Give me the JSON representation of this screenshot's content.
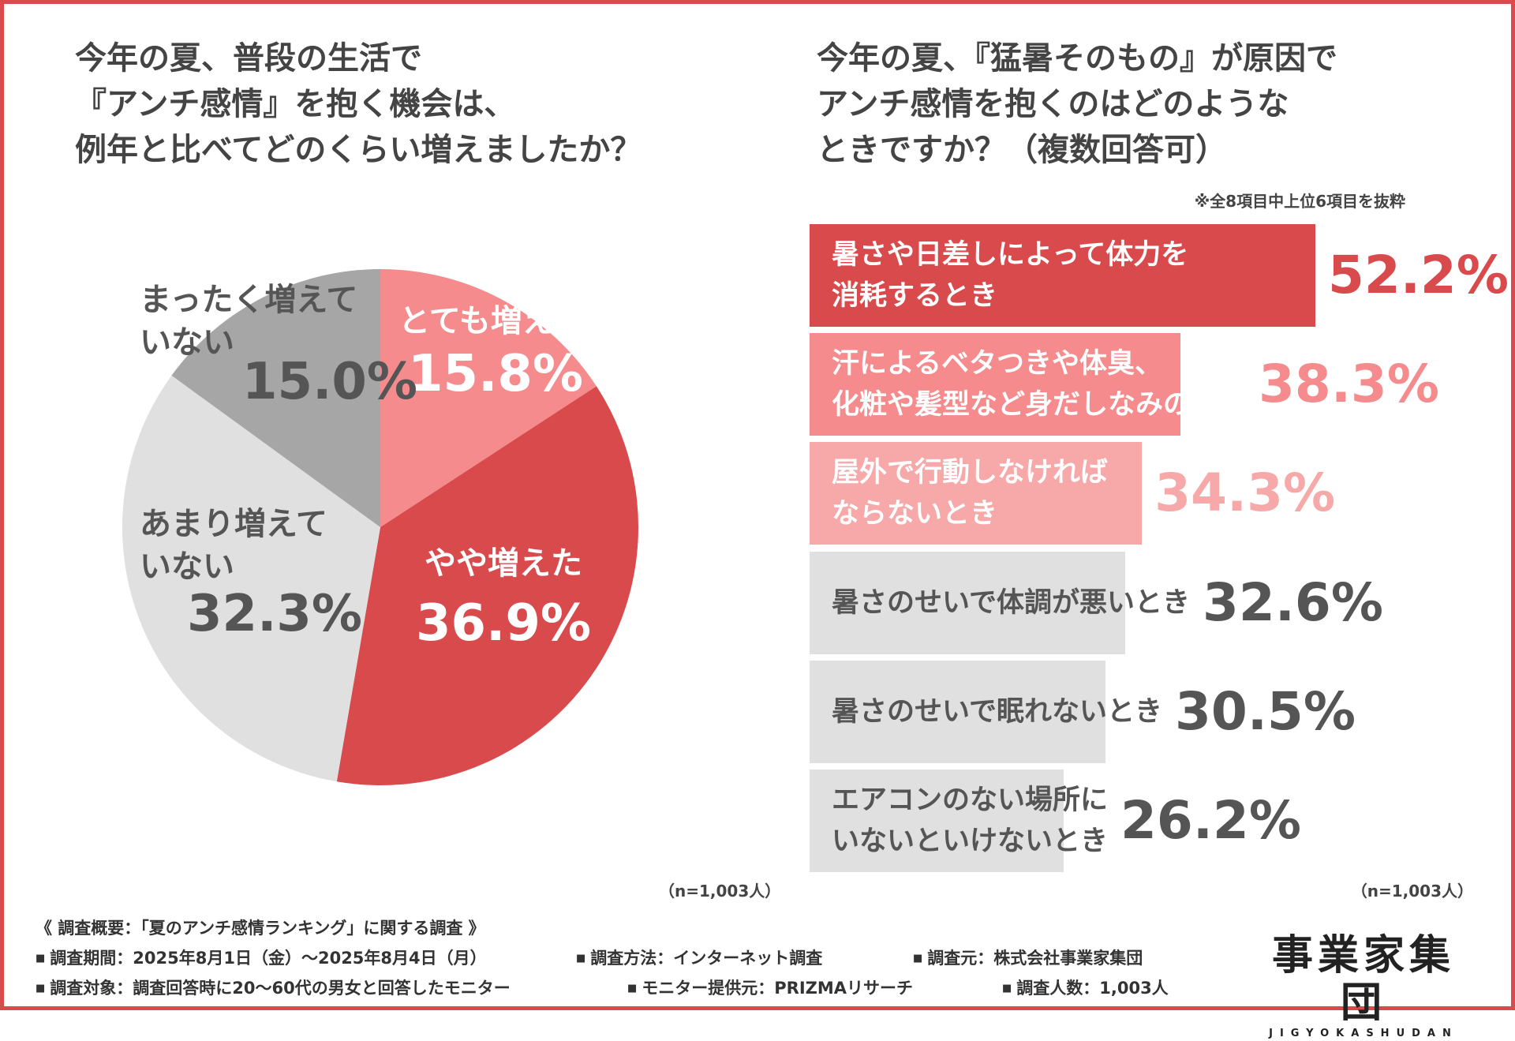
{
  "colors": {
    "frame": "#d94a4c",
    "dark_red": "#d94a4c",
    "salmon": "#f58b8c",
    "light_pink": "#f7a8a8",
    "gray": "#a6a6a6",
    "light_gray": "#e0e0e0",
    "text_dark": "#555555"
  },
  "pie": {
    "title_lines": [
      "今年の夏、普段の生活で",
      "『アンチ感情』を抱く機会は、",
      "例年と比べてどのくらい増えましたか？"
    ],
    "n_label": "（n=1,003人）"
  },
  "bar": {
    "title_lines": [
      "今年の夏、『猛暑そのもの』が原因で",
      "アンチ感情を抱くのはどのような",
      "ときですか？（複数回答可）"
    ],
    "note": "※全8項目中上位6項目を抜粋",
    "n_label": "（n=1,003人）"
  },
  "chart_data": [
    {
      "type": "pie",
      "slices": [
        {
          "label_lines": [
            "とても増えた"
          ],
          "value": 15.8,
          "value_label": "15.8%",
          "color": "#f58b8c",
          "label_color": "#ffffff"
        },
        {
          "label_lines": [
            "やや増えた"
          ],
          "value": 36.9,
          "value_label": "36.9%",
          "color": "#d94a4c",
          "label_color": "#ffffff"
        },
        {
          "label_lines": [
            "あまり増えて",
            "いない"
          ],
          "value": 32.3,
          "value_label": "32.3%",
          "color": "#e0e0e0",
          "label_color": "#555555"
        },
        {
          "label_lines": [
            "まったく増えて",
            "いない"
          ],
          "value": 15.0,
          "value_label": "15.0%",
          "color": "#a6a6a6",
          "label_color": "#555555"
        }
      ]
    },
    {
      "type": "bar",
      "orientation": "horizontal",
      "xlim": [
        0,
        52.2
      ],
      "bars": [
        {
          "label_lines": [
            "暑さや日差しによって体力を",
            "消耗するとき"
          ],
          "value": 52.2,
          "value_label": "52.2%",
          "color": "#d94a4c",
          "label_color": "#ffffff",
          "value_color": "#d94a4c"
        },
        {
          "label_lines": [
            "汗によるベタつきや体臭、",
            "化粧や髪型など身だしなみの乱れ"
          ],
          "value": 38.3,
          "value_label": "38.3%",
          "color": "#f58b8c",
          "label_color": "#ffffff",
          "value_color": "#f58b8c"
        },
        {
          "label_lines": [
            "屋外で行動しなければ",
            "ならないとき"
          ],
          "value": 34.3,
          "value_label": "34.3%",
          "color": "#f7a8a8",
          "label_color": "#ffffff",
          "value_color": "#f7a8a8"
        },
        {
          "label_lines": [
            "暑さのせいで体調が悪いとき"
          ],
          "value": 32.6,
          "value_label": "32.6%",
          "color": "#e0e0e0",
          "label_color": "#555555",
          "value_color": "#555555"
        },
        {
          "label_lines": [
            "暑さのせいで眠れないとき"
          ],
          "value": 30.5,
          "value_label": "30.5%",
          "color": "#e0e0e0",
          "label_color": "#555555",
          "value_color": "#555555"
        },
        {
          "label_lines": [
            "エアコンのない場所に",
            "いないといけないとき"
          ],
          "value": 26.2,
          "value_label": "26.2%",
          "color": "#e0e0e0",
          "label_color": "#555555",
          "value_color": "#555555"
        }
      ]
    }
  ],
  "survey": {
    "header": "《 調査概要：「夏のアンチ感情ランキング」に関する調査 》",
    "period": "調査期間：2025年8月1日（金）〜2025年8月4日（月）",
    "method": "調査方法：インターネット調査",
    "source": "調査元：株式会社事業家集団",
    "target": "調査対象：調査回答時に20〜60代の男女と回答したモニター",
    "provider": "モニター提供元：PRIZMAリサーチ",
    "count": "調査人数：1,003人"
  },
  "logo": {
    "main": "事業家集団",
    "sub": "JIGYOKASHUDAN"
  }
}
